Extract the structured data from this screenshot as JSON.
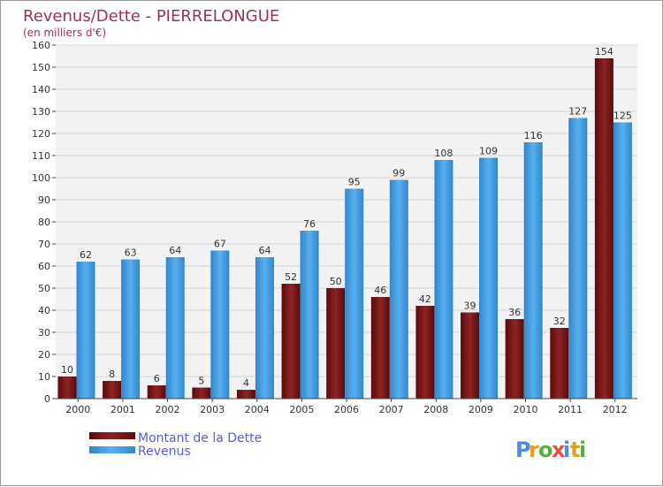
{
  "chart_data": {
    "type": "bar",
    "title": "Revenus/Dette - PIERRELONGUE",
    "subtitle": "(en milliers d'€)",
    "categories": [
      "2000",
      "2001",
      "2002",
      "2003",
      "2004",
      "2005",
      "2006",
      "2007",
      "2008",
      "2009",
      "2010",
      "2011",
      "2012"
    ],
    "series": [
      {
        "name": "Montant de la Dette",
        "color": "#7a1515",
        "values": [
          10,
          8,
          6,
          5,
          4,
          52,
          50,
          46,
          42,
          39,
          36,
          32,
          154
        ]
      },
      {
        "name": "Revenus",
        "color": "#3f9ee0",
        "values": [
          62,
          63,
          64,
          67,
          64,
          76,
          95,
          99,
          108,
          109,
          116,
          127,
          125
        ]
      }
    ],
    "ylim": [
      0,
      160
    ],
    "yticks": [
      0,
      10,
      20,
      30,
      40,
      50,
      60,
      70,
      80,
      90,
      100,
      110,
      120,
      130,
      140,
      150,
      160
    ],
    "grid": true,
    "legend_position": "bottom-left"
  },
  "brand": {
    "letters": [
      "P",
      "r",
      "o",
      "x",
      "i",
      "t",
      "i"
    ],
    "colors": [
      "#4a90d9",
      "#e0a020",
      "#55b040",
      "#e05050",
      "#4a90d9",
      "#e0a020",
      "#55b040"
    ]
  }
}
